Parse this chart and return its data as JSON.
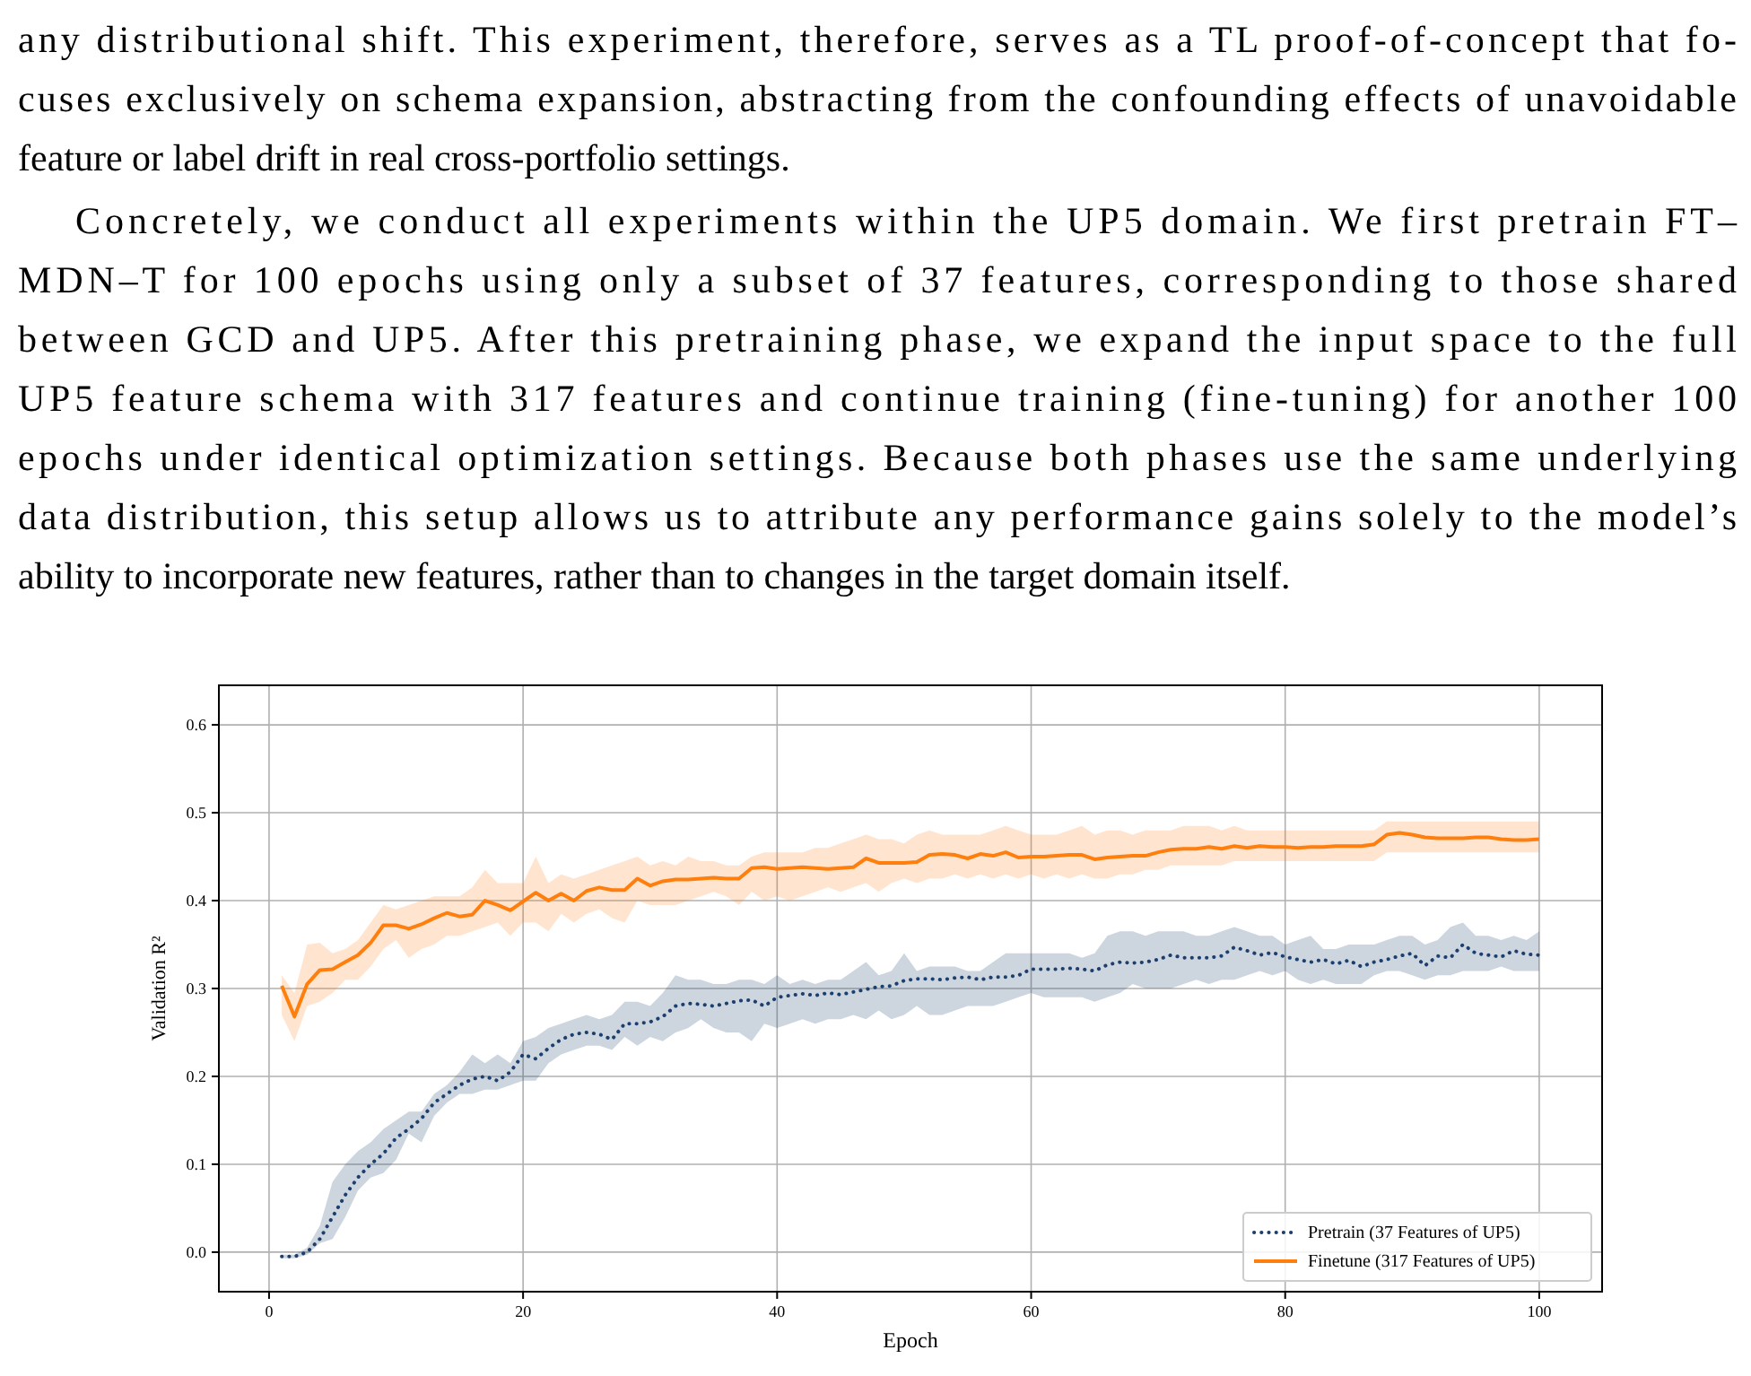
{
  "chart_data": {
    "type": "line",
    "xlabel": "Epoch",
    "ylabel": "Validation R²",
    "annotations": [
      "any distributional shift.  This experiment, therefore, serves as a TL proof-of-concept that fo-",
      "cuses exclusively on schema expansion, abstracting from the confounding effects of unavoidable",
      "feature or label drift in real cross-portfolio settings.",
      "Concretely, we conduct all experiments within the UP5 domain.  We first pretrain FT–",
      "MDN–T for 100 epochs using only a subset of 37 features, corresponding to those shared",
      "between GCD and UP5.  After this pretraining phase, we expand the input space to the full",
      "UP5 feature schema with 317 features and continue training (fine-tuning) for another 100",
      "epochs under identical optimization settings.  Because both phases use the same underlying",
      "data distribution, this setup allows us to attribute any performance gains solely to the model’s",
      "ability to incorporate new features, rather than to changes in the target domain itself."
    ],
    "x": [
      1,
      2,
      3,
      4,
      5,
      6,
      7,
      8,
      9,
      10,
      11,
      12,
      13,
      14,
      15,
      16,
      17,
      18,
      19,
      20,
      21,
      22,
      23,
      24,
      25,
      26,
      27,
      28,
      29,
      30,
      31,
      32,
      33,
      34,
      35,
      36,
      37,
      38,
      39,
      40,
      41,
      42,
      43,
      44,
      45,
      46,
      47,
      48,
      49,
      50,
      51,
      52,
      53,
      54,
      55,
      56,
      57,
      58,
      59,
      60,
      61,
      62,
      63,
      64,
      65,
      66,
      67,
      68,
      69,
      70,
      71,
      72,
      73,
      74,
      75,
      76,
      77,
      78,
      79,
      80,
      81,
      82,
      83,
      84,
      85,
      86,
      87,
      88,
      89,
      90,
      91,
      92,
      93,
      94,
      95,
      96,
      97,
      98,
      99,
      100
    ],
    "xlim": [
      -3.95,
      104.95
    ],
    "xticks": [
      0,
      20,
      40,
      60,
      80,
      100
    ],
    "ylim": [
      -0.045,
      0.645
    ],
    "yticks": [
      {
        "value": 0,
        "label": "0.0"
      },
      0.1,
      0.2,
      0.3,
      0.4,
      0.5,
      0.6
    ],
    "grid": true,
    "legend": "bottom right",
    "series": [
      {
        "name": "Pretrain (37 Features of UP5)",
        "color": "#1c3f6e",
        "line_style": "dotted",
        "values": [
          -0.005,
          -0.005,
          0.0,
          0.015,
          0.04,
          0.065,
          0.085,
          0.1,
          0.112,
          0.13,
          0.14,
          0.152,
          0.17,
          0.18,
          0.19,
          0.197,
          0.2,
          0.195,
          0.205,
          0.225,
          0.22,
          0.232,
          0.242,
          0.248,
          0.25,
          0.248,
          0.242,
          0.26,
          0.26,
          0.262,
          0.268,
          0.28,
          0.283,
          0.282,
          0.28,
          0.283,
          0.286,
          0.287,
          0.28,
          0.29,
          0.292,
          0.294,
          0.292,
          0.295,
          0.293,
          0.296,
          0.299,
          0.302,
          0.303,
          0.309,
          0.311,
          0.311,
          0.31,
          0.312,
          0.313,
          0.31,
          0.313,
          0.313,
          0.315,
          0.322,
          0.322,
          0.322,
          0.323,
          0.322,
          0.32,
          0.327,
          0.33,
          0.329,
          0.33,
          0.333,
          0.338,
          0.335,
          0.335,
          0.335,
          0.337,
          0.347,
          0.343,
          0.338,
          0.341,
          0.336,
          0.333,
          0.33,
          0.333,
          0.328,
          0.332,
          0.325,
          0.33,
          0.333,
          0.337,
          0.34,
          0.326,
          0.337,
          0.335,
          0.35,
          0.34,
          0.338,
          0.336,
          0.343,
          0.339,
          0.338
        ],
        "lower": [
          -0.007,
          -0.007,
          -0.003,
          0.01,
          0.015,
          0.04,
          0.07,
          0.085,
          0.09,
          0.105,
          0.135,
          0.125,
          0.155,
          0.17,
          0.18,
          0.18,
          0.185,
          0.185,
          0.19,
          0.195,
          0.195,
          0.215,
          0.225,
          0.23,
          0.235,
          0.235,
          0.23,
          0.245,
          0.235,
          0.245,
          0.24,
          0.25,
          0.255,
          0.265,
          0.255,
          0.25,
          0.25,
          0.24,
          0.26,
          0.255,
          0.26,
          0.265,
          0.26,
          0.265,
          0.265,
          0.27,
          0.265,
          0.275,
          0.265,
          0.27,
          0.28,
          0.27,
          0.27,
          0.275,
          0.28,
          0.28,
          0.28,
          0.285,
          0.29,
          0.295,
          0.29,
          0.29,
          0.29,
          0.29,
          0.285,
          0.29,
          0.295,
          0.305,
          0.3,
          0.3,
          0.3,
          0.305,
          0.31,
          0.305,
          0.31,
          0.31,
          0.315,
          0.32,
          0.315,
          0.32,
          0.31,
          0.305,
          0.31,
          0.305,
          0.305,
          0.305,
          0.315,
          0.32,
          0.32,
          0.315,
          0.31,
          0.315,
          0.315,
          0.32,
          0.32,
          0.32,
          0.325,
          0.32,
          0.32,
          0.32
        ],
        "upper": [
          -0.003,
          -0.003,
          0.005,
          0.03,
          0.08,
          0.1,
          0.115,
          0.125,
          0.14,
          0.15,
          0.16,
          0.16,
          0.18,
          0.19,
          0.205,
          0.225,
          0.215,
          0.225,
          0.215,
          0.24,
          0.245,
          0.255,
          0.26,
          0.265,
          0.27,
          0.265,
          0.27,
          0.285,
          0.285,
          0.28,
          0.295,
          0.315,
          0.31,
          0.31,
          0.305,
          0.305,
          0.31,
          0.31,
          0.305,
          0.315,
          0.305,
          0.31,
          0.305,
          0.31,
          0.31,
          0.32,
          0.33,
          0.315,
          0.32,
          0.34,
          0.32,
          0.325,
          0.325,
          0.325,
          0.32,
          0.32,
          0.33,
          0.34,
          0.34,
          0.34,
          0.34,
          0.34,
          0.34,
          0.335,
          0.34,
          0.36,
          0.365,
          0.365,
          0.36,
          0.365,
          0.365,
          0.365,
          0.36,
          0.36,
          0.365,
          0.37,
          0.365,
          0.36,
          0.36,
          0.35,
          0.355,
          0.36,
          0.345,
          0.345,
          0.35,
          0.35,
          0.35,
          0.355,
          0.36,
          0.36,
          0.35,
          0.355,
          0.37,
          0.375,
          0.36,
          0.36,
          0.355,
          0.36,
          0.355,
          0.365
        ]
      },
      {
        "name": "Finetune (317 Features of UP5)",
        "color": "#ff7f0e",
        "line_style": "solid",
        "values": [
          0.303,
          0.268,
          0.305,
          0.321,
          0.322,
          0.33,
          0.338,
          0.352,
          0.372,
          0.372,
          0.368,
          0.373,
          0.38,
          0.386,
          0.382,
          0.384,
          0.4,
          0.395,
          0.389,
          0.399,
          0.409,
          0.4,
          0.408,
          0.4,
          0.411,
          0.415,
          0.412,
          0.412,
          0.425,
          0.417,
          0.422,
          0.424,
          0.424,
          0.425,
          0.426,
          0.425,
          0.425,
          0.437,
          0.438,
          0.436,
          0.437,
          0.438,
          0.437,
          0.436,
          0.437,
          0.438,
          0.448,
          0.443,
          0.443,
          0.443,
          0.444,
          0.452,
          0.453,
          0.452,
          0.448,
          0.453,
          0.451,
          0.455,
          0.449,
          0.45,
          0.45,
          0.451,
          0.452,
          0.452,
          0.447,
          0.449,
          0.45,
          0.451,
          0.451,
          0.455,
          0.458,
          0.459,
          0.459,
          0.461,
          0.459,
          0.462,
          0.46,
          0.462,
          0.461,
          0.461,
          0.46,
          0.461,
          0.461,
          0.462,
          0.462,
          0.462,
          0.464,
          0.475,
          0.477,
          0.475,
          0.472,
          0.471,
          0.471,
          0.471,
          0.472,
          0.472,
          0.47,
          0.469,
          0.469,
          0.47
        ],
        "lower": [
          0.27,
          0.24,
          0.28,
          0.285,
          0.295,
          0.31,
          0.31,
          0.325,
          0.345,
          0.355,
          0.335,
          0.345,
          0.35,
          0.36,
          0.36,
          0.365,
          0.37,
          0.375,
          0.36,
          0.375,
          0.375,
          0.365,
          0.385,
          0.375,
          0.385,
          0.39,
          0.38,
          0.375,
          0.4,
          0.395,
          0.395,
          0.395,
          0.4,
          0.405,
          0.41,
          0.405,
          0.395,
          0.41,
          0.4,
          0.405,
          0.4,
          0.405,
          0.41,
          0.415,
          0.41,
          0.415,
          0.42,
          0.41,
          0.42,
          0.425,
          0.42,
          0.425,
          0.425,
          0.43,
          0.425,
          0.43,
          0.425,
          0.43,
          0.425,
          0.43,
          0.425,
          0.43,
          0.425,
          0.43,
          0.425,
          0.425,
          0.43,
          0.43,
          0.435,
          0.435,
          0.44,
          0.44,
          0.44,
          0.44,
          0.44,
          0.445,
          0.445,
          0.445,
          0.445,
          0.445,
          0.445,
          0.445,
          0.445,
          0.445,
          0.445,
          0.445,
          0.445,
          0.455,
          0.455,
          0.455,
          0.455,
          0.455,
          0.455,
          0.455,
          0.455,
          0.455,
          0.455,
          0.455,
          0.455,
          0.455
        ],
        "upper": [
          0.315,
          0.295,
          0.35,
          0.352,
          0.34,
          0.345,
          0.355,
          0.375,
          0.395,
          0.39,
          0.395,
          0.4,
          0.405,
          0.405,
          0.405,
          0.415,
          0.435,
          0.42,
          0.42,
          0.42,
          0.45,
          0.42,
          0.43,
          0.425,
          0.43,
          0.435,
          0.44,
          0.445,
          0.45,
          0.44,
          0.445,
          0.44,
          0.45,
          0.445,
          0.445,
          0.44,
          0.44,
          0.45,
          0.455,
          0.455,
          0.455,
          0.455,
          0.46,
          0.46,
          0.465,
          0.47,
          0.475,
          0.47,
          0.47,
          0.465,
          0.475,
          0.48,
          0.475,
          0.475,
          0.475,
          0.475,
          0.48,
          0.485,
          0.48,
          0.475,
          0.475,
          0.475,
          0.48,
          0.485,
          0.475,
          0.48,
          0.48,
          0.475,
          0.48,
          0.48,
          0.48,
          0.485,
          0.485,
          0.485,
          0.48,
          0.485,
          0.48,
          0.48,
          0.48,
          0.48,
          0.48,
          0.48,
          0.48,
          0.48,
          0.48,
          0.48,
          0.48,
          0.49,
          0.49,
          0.49,
          0.49,
          0.49,
          0.49,
          0.49,
          0.49,
          0.49,
          0.49,
          0.49,
          0.49,
          0.49
        ]
      }
    ]
  }
}
